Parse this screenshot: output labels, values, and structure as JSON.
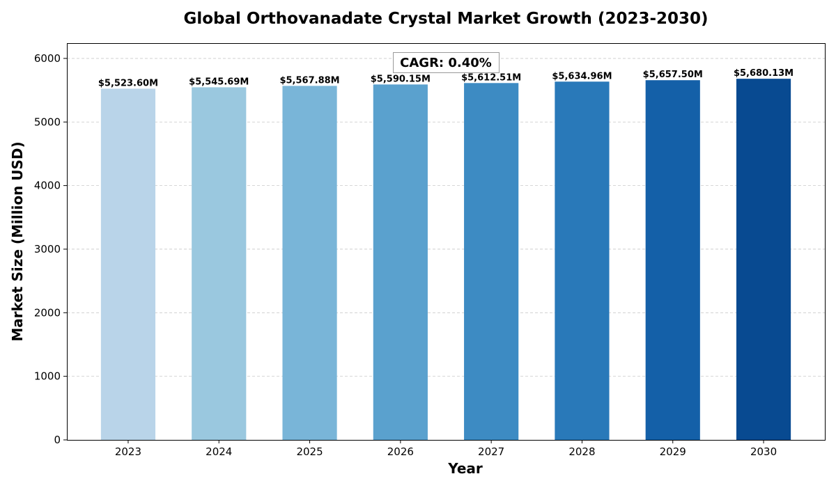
{
  "chart_data": {
    "type": "bar",
    "title": "Global Orthovanadate Crystal Market Growth (2023-2030)",
    "xlabel": "Year",
    "ylabel": "Market Size (Million USD)",
    "categories": [
      "2023",
      "2024",
      "2025",
      "2026",
      "2027",
      "2028",
      "2029",
      "2030"
    ],
    "values": [
      5523.6,
      5545.69,
      5567.88,
      5590.15,
      5612.51,
      5634.96,
      5657.5,
      5680.13
    ],
    "data_labels": [
      "$5,523.60M",
      "$5,545.69M",
      "$5,567.88M",
      "$5,590.15M",
      "$5,612.51M",
      "$5,634.96M",
      "$5,657.50M",
      "$5,680.13M"
    ],
    "colors": [
      "#b9d4e9",
      "#9ac8df",
      "#79b5d8",
      "#5aa1ce",
      "#3d8bc3",
      "#2979b9",
      "#1460a8",
      "#084a91"
    ],
    "ylim": [
      0,
      6240
    ],
    "yticks": [
      0,
      1000,
      2000,
      3000,
      4000,
      5000,
      6000
    ],
    "grid": "y, dashed",
    "annotation": "CAGR: 0.40%"
  }
}
